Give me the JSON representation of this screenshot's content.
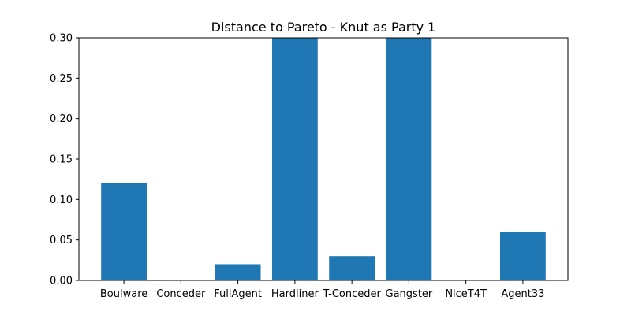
{
  "chart_data": {
    "type": "bar",
    "title": "Distance to Pareto - Knut as Party 1",
    "xlabel": "",
    "ylabel": "",
    "categories": [
      "Boulware",
      "Conceder",
      "FullAgent",
      "Hardliner",
      "T-Conceder",
      "Gangster",
      "NiceT4T",
      "Agent33"
    ],
    "values": [
      0.12,
      0.0,
      0.02,
      0.3,
      0.03,
      0.3,
      0.0,
      0.06
    ],
    "ylim": [
      0,
      0.3
    ],
    "yticks": [
      "0.00",
      "0.05",
      "0.10",
      "0.15",
      "0.20",
      "0.25",
      "0.30"
    ],
    "grid": false,
    "legend": "none",
    "bar_color": "#1f77b4"
  }
}
